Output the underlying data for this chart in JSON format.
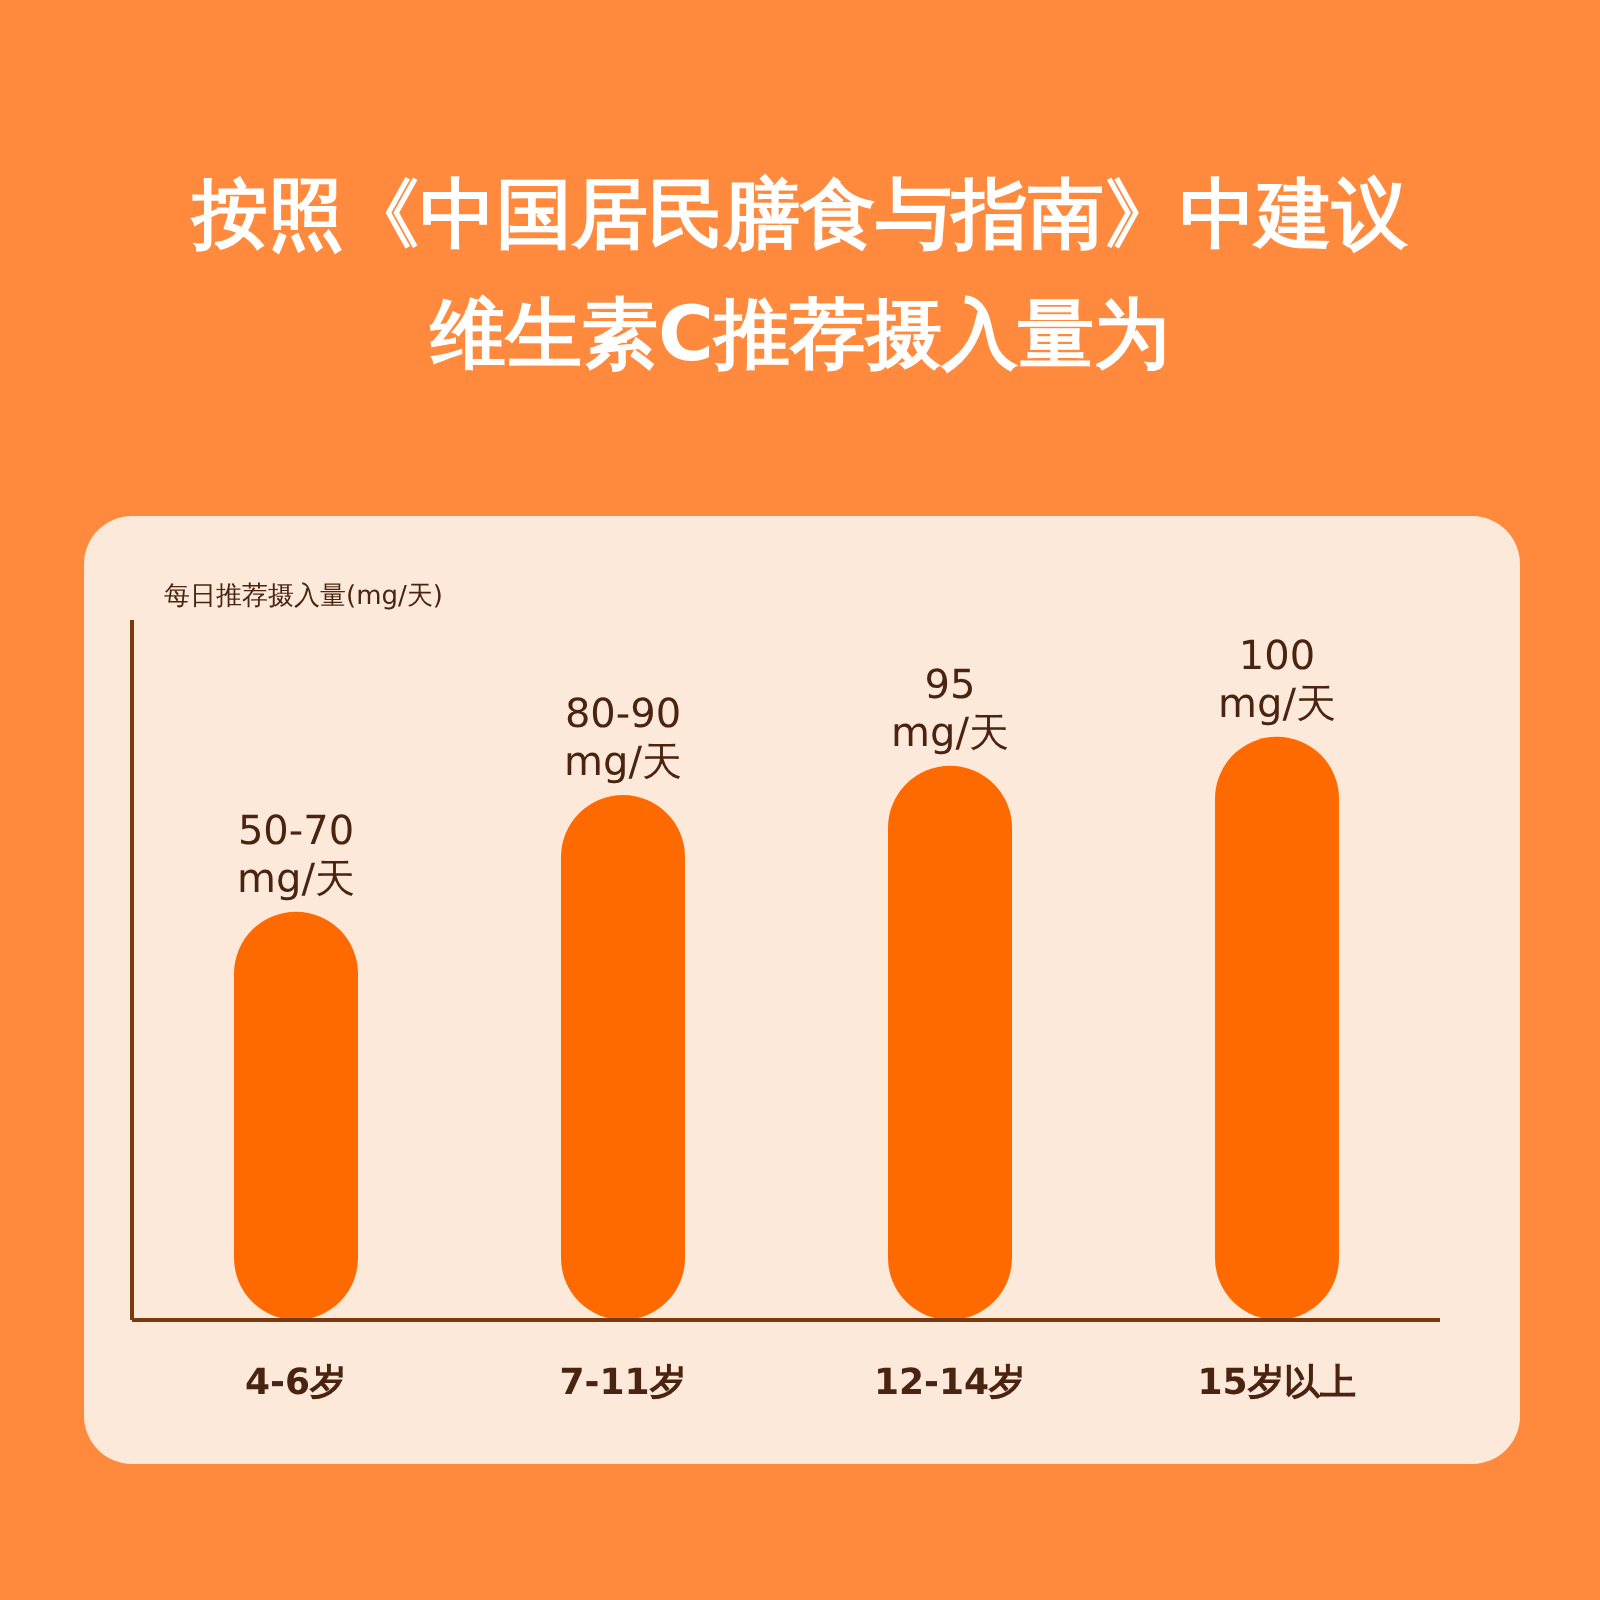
{
  "chart_data": {
    "type": "bar",
    "title": "按照《中国居民膳食与指南》中建议",
    "subtitle": "维生素C推荐摄入量为",
    "ylabel": "每日推荐摄入量(mg/天)",
    "categories": [
      "4-6岁",
      "7-11岁",
      "12-14岁",
      "15岁以上"
    ],
    "values": [
      70,
      90,
      95,
      100
    ],
    "value_labels": [
      "50-70 mg/天",
      "80-90 mg/天",
      "95 mg/天",
      "100 mg/天"
    ],
    "color": "#ff6a00"
  }
}
